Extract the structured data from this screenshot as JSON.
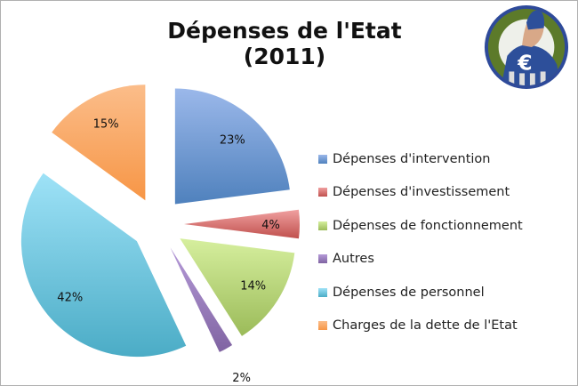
{
  "chart_data": {
    "type": "pie",
    "title": "Dépenses de l'Etat (2011)",
    "categories": [
      "Dépenses d'intervention",
      "Dépenses d'investissement",
      "Dépenses de fonctionnement",
      "Autres",
      "Dépenses de personnel",
      "Charges de la dette de l'Etat"
    ],
    "values": [
      23,
      4,
      14,
      2,
      42,
      15
    ],
    "labels": [
      "23%",
      "4%",
      "14%",
      "2%",
      "42%",
      "15%"
    ],
    "colors": [
      "#4f81bd",
      "#c0504d",
      "#9bbb59",
      "#8064a2",
      "#4bacc6",
      "#f79646"
    ],
    "colors_light": [
      "#9bb8ea",
      "#f0a0a0",
      "#d6ef9e",
      "#b59ad8",
      "#9ee2f7",
      "#fbbd8a"
    ],
    "legend_position": "right",
    "exploded": true
  },
  "logo_icon": "euro-superhero-logo"
}
